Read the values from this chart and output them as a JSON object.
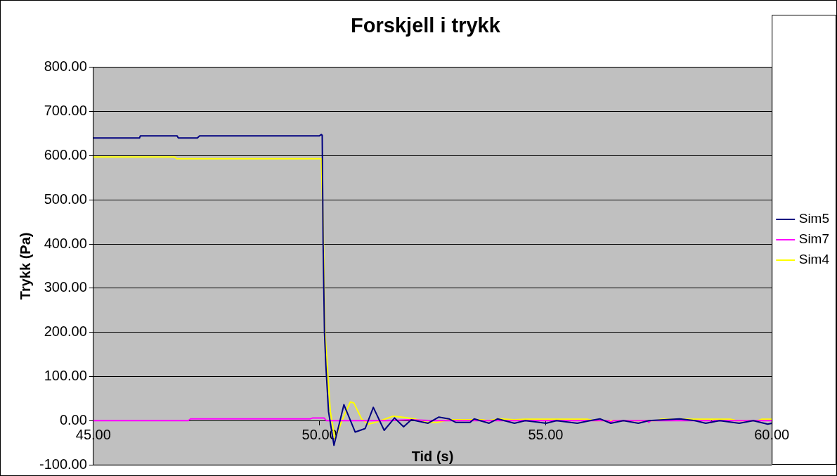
{
  "chart_data": {
    "type": "line",
    "title": "Forskjell i trykk",
    "xlabel": "Tid (s)",
    "ylabel": "Trykk (Pa)",
    "xlim": [
      45,
      60
    ],
    "xticks": [
      {
        "value": 45,
        "label": "45.00"
      },
      {
        "value": 50,
        "label": "50.00"
      },
      {
        "value": 55,
        "label": "55.00"
      },
      {
        "value": 60,
        "label": "60.00"
      }
    ],
    "ylim": [
      -100,
      800
    ],
    "yticks": [
      {
        "value": -100,
        "label": "-100.00"
      },
      {
        "value": 0,
        "label": "0.00"
      },
      {
        "value": 100,
        "label": "100.00"
      },
      {
        "value": 200,
        "label": "200.00"
      },
      {
        "value": 300,
        "label": "300.00"
      },
      {
        "value": 400,
        "label": "400.00"
      },
      {
        "value": 500,
        "label": "500.00"
      },
      {
        "value": 600,
        "label": "600.00"
      },
      {
        "value": 700,
        "label": "700.00"
      },
      {
        "value": 800,
        "label": "800.00"
      }
    ],
    "grid": "y",
    "legend": "right",
    "marker": "none",
    "line_style": "solid",
    "series": [
      {
        "name": "Sim5",
        "color": "#000080",
        "x": [
          45,
          46.02,
          46.04,
          46.85,
          46.88,
          47.3,
          47.35,
          50.0,
          50.04,
          50.06,
          50.08,
          50.11,
          50.14,
          50.2,
          50.32,
          50.54,
          50.79,
          51.01,
          51.19,
          51.43,
          51.66,
          51.86,
          52.03,
          52.4,
          52.64,
          52.86,
          53.01,
          53.33,
          53.42,
          53.75,
          53.94,
          54.31,
          54.55,
          55.01,
          55.24,
          55.7,
          55.98,
          56.2,
          56.44,
          56.72,
          57.05,
          57.28,
          57.96,
          58.3,
          58.54,
          58.85,
          59.28,
          59.59,
          59.91,
          60
        ],
        "values": [
          640,
          640,
          645,
          645,
          640,
          640,
          645,
          645,
          648,
          646,
          400,
          200,
          126,
          20,
          -56,
          36,
          -26,
          -18,
          30,
          -22,
          6,
          -14,
          2,
          -6,
          8,
          4,
          -4,
          -4,
          4,
          -6,
          4,
          -6,
          0,
          -6,
          0,
          -6,
          0,
          4,
          -6,
          0,
          -6,
          0,
          4,
          0,
          -6,
          0,
          -6,
          0,
          -8,
          -6
        ]
      },
      {
        "name": "Sim7",
        "color": "#ff00ff",
        "x": [
          45,
          47.1,
          47.15,
          49.8,
          49.85,
          50.1,
          50.15,
          51.5,
          52,
          52.5,
          56.4,
          56.44,
          56.5,
          57.24,
          57.28,
          57.32,
          58.63,
          58.67,
          58.71,
          60
        ],
        "values": [
          0,
          0,
          4,
          4,
          6,
          6,
          0,
          0,
          2,
          0,
          0,
          -4,
          0,
          0,
          -4,
          0,
          0,
          -4,
          0,
          0
        ]
      },
      {
        "name": "Sim4",
        "color": "#ffff00",
        "x": [
          45,
          46.8,
          46.84,
          50.04,
          50.08,
          50.12,
          50.17,
          50.24,
          50.34,
          50.52,
          50.68,
          50.76,
          50.93,
          51.08,
          51.3,
          51.63,
          51.82,
          52.1,
          52.36,
          52.6,
          52.86,
          53.6,
          53.73,
          53.97,
          54.31,
          54.55,
          55.92,
          56.07,
          57.46,
          57.55,
          59.09,
          59.22,
          59.69,
          59.78,
          60
        ],
        "values": [
          597,
          597,
          593,
          593,
          450,
          200,
          126,
          20,
          -42,
          6,
          42,
          40,
          4,
          -8,
          -2,
          10,
          8,
          4,
          -4,
          -4,
          2,
          2,
          0,
          4,
          2,
          3,
          3,
          0,
          0,
          3,
          3,
          0,
          0,
          3,
          3
        ]
      }
    ]
  }
}
